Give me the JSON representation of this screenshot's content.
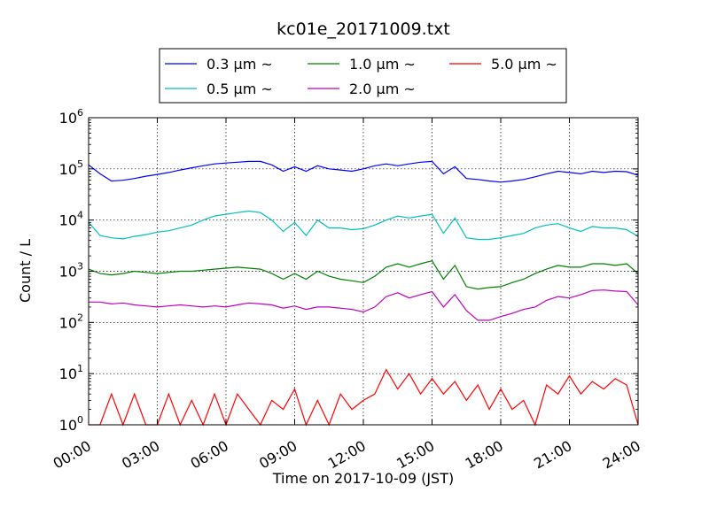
{
  "chart_data": {
    "type": "line",
    "title": "kc01e_20171009.txt",
    "xlabel": "Time on 2017-10-09 (JST)",
    "ylabel": "Count / L",
    "xlim": [
      0,
      24
    ],
    "ylim": [
      1,
      1000000
    ],
    "yscale": "log",
    "grid": true,
    "legend_position": "top-center",
    "x_ticks": [
      {
        "value": 0,
        "label": "00:00"
      },
      {
        "value": 3,
        "label": "03:00"
      },
      {
        "value": 6,
        "label": "06:00"
      },
      {
        "value": 9,
        "label": "09:00"
      },
      {
        "value": 12,
        "label": "12:00"
      },
      {
        "value": 15,
        "label": "15:00"
      },
      {
        "value": 18,
        "label": "18:00"
      },
      {
        "value": 21,
        "label": "21:00"
      },
      {
        "value": 24,
        "label": "24:00"
      }
    ],
    "y_ticks": [
      {
        "value": 1,
        "base": "10",
        "exp": "0"
      },
      {
        "value": 10,
        "base": "10",
        "exp": "1"
      },
      {
        "value": 100,
        "base": "10",
        "exp": "2"
      },
      {
        "value": 1000,
        "base": "10",
        "exp": "3"
      },
      {
        "value": 10000,
        "base": "10",
        "exp": "4"
      },
      {
        "value": 100000,
        "base": "10",
        "exp": "5"
      },
      {
        "value": 1000000,
        "base": "10",
        "exp": "6"
      }
    ],
    "series": [
      {
        "name": "0.3 μm ~",
        "color": "#0000ff",
        "x": [
          0,
          0.5,
          1,
          1.5,
          2,
          2.5,
          3,
          3.5,
          4,
          4.5,
          5,
          5.5,
          6,
          6.5,
          7,
          7.5,
          8,
          8.5,
          9,
          9.5,
          10,
          10.5,
          11,
          11.5,
          12,
          12.5,
          13,
          13.5,
          14,
          14.5,
          15,
          15.5,
          16,
          16.5,
          17,
          17.5,
          18,
          18.5,
          19,
          19.5,
          20,
          20.5,
          21,
          21.5,
          22,
          22.5,
          23,
          23.5,
          24
        ],
        "y": [
          120000,
          80000,
          58000,
          60000,
          65000,
          72000,
          78000,
          85000,
          95000,
          105000,
          115000,
          125000,
          130000,
          135000,
          140000,
          140000,
          120000,
          90000,
          110000,
          90000,
          115000,
          100000,
          95000,
          90000,
          100000,
          115000,
          125000,
          115000,
          125000,
          135000,
          140000,
          80000,
          110000,
          65000,
          62000,
          58000,
          55000,
          58000,
          62000,
          70000,
          80000,
          90000,
          85000,
          80000,
          90000,
          85000,
          90000,
          88000,
          75000
        ]
      },
      {
        "name": "0.5 μm ~",
        "color": "#00bfbf",
        "x": [
          0,
          0.5,
          1,
          1.5,
          2,
          2.5,
          3,
          3.5,
          4,
          4.5,
          5,
          5.5,
          6,
          6.5,
          7,
          7.5,
          8,
          8.5,
          9,
          9.5,
          10,
          10.5,
          11,
          11.5,
          12,
          12.5,
          13,
          13.5,
          14,
          14.5,
          15,
          15.5,
          16,
          16.5,
          17,
          17.5,
          18,
          18.5,
          19,
          19.5,
          20,
          20.5,
          21,
          21.5,
          22,
          22.5,
          23,
          23.5,
          24
        ],
        "y": [
          9000,
          5000,
          4500,
          4300,
          4800,
          5200,
          5800,
          6200,
          7000,
          8000,
          10000,
          12000,
          13000,
          14000,
          15000,
          14000,
          10000,
          6000,
          9000,
          5000,
          10000,
          7000,
          7000,
          6500,
          6800,
          8000,
          10000,
          12000,
          11000,
          12000,
          13000,
          5500,
          11000,
          4500,
          4200,
          4200,
          4500,
          5000,
          5500,
          7000,
          8000,
          8500,
          7000,
          6000,
          7500,
          7000,
          7000,
          6500,
          4800
        ]
      },
      {
        "name": "1.0 μm ~",
        "color": "#008000",
        "x": [
          0,
          0.5,
          1,
          1.5,
          2,
          2.5,
          3,
          3.5,
          4,
          4.5,
          5,
          5.5,
          6,
          6.5,
          7,
          7.5,
          8,
          8.5,
          9,
          9.5,
          10,
          10.5,
          11,
          11.5,
          12,
          12.5,
          13,
          13.5,
          14,
          14.5,
          15,
          15.5,
          16,
          16.5,
          17,
          17.5,
          18,
          18.5,
          19,
          19.5,
          20,
          20.5,
          21,
          21.5,
          22,
          22.5,
          23,
          23.5,
          24
        ],
        "y": [
          1100,
          900,
          850,
          900,
          1000,
          950,
          900,
          950,
          1000,
          1000,
          1050,
          1100,
          1150,
          1200,
          1150,
          1100,
          900,
          700,
          900,
          700,
          1000,
          800,
          700,
          650,
          600,
          800,
          1200,
          1400,
          1200,
          1400,
          1600,
          700,
          1300,
          500,
          450,
          480,
          500,
          600,
          700,
          900,
          1100,
          1300,
          1200,
          1200,
          1400,
          1400,
          1300,
          1400,
          900
        ]
      },
      {
        "name": "2.0 μm ~",
        "color": "#bf00bf",
        "x": [
          0,
          0.5,
          1,
          1.5,
          2,
          2.5,
          3,
          3.5,
          4,
          4.5,
          5,
          5.5,
          6,
          6.5,
          7,
          7.5,
          8,
          8.5,
          9,
          9.5,
          10,
          10.5,
          11,
          11.5,
          12,
          12.5,
          13,
          13.5,
          14,
          14.5,
          15,
          15.5,
          16,
          16.5,
          17,
          17.5,
          18,
          18.5,
          19,
          19.5,
          20,
          20.5,
          21,
          21.5,
          22,
          22.5,
          23,
          23.5,
          24
        ],
        "y": [
          250,
          250,
          230,
          240,
          220,
          210,
          200,
          210,
          220,
          210,
          200,
          210,
          200,
          220,
          240,
          230,
          220,
          190,
          210,
          180,
          200,
          200,
          190,
          180,
          160,
          200,
          320,
          380,
          300,
          350,
          400,
          200,
          350,
          170,
          110,
          110,
          130,
          150,
          180,
          200,
          270,
          320,
          300,
          350,
          420,
          430,
          410,
          400,
          220
        ]
      },
      {
        "name": "5.0 μm ~",
        "color": "#ff0000",
        "x": [
          0,
          0.5,
          1,
          1.5,
          2,
          2.5,
          3,
          3.5,
          4,
          4.5,
          5,
          5.5,
          6,
          6.5,
          7,
          7.5,
          8,
          8.5,
          9,
          9.5,
          10,
          10.5,
          11,
          11.5,
          12,
          12.5,
          13,
          13.5,
          14,
          14.5,
          15,
          15.5,
          16,
          16.5,
          17,
          17.5,
          18,
          18.5,
          19,
          19.5,
          20,
          20.5,
          21,
          21.5,
          22,
          22.5,
          23,
          23.5,
          24
        ],
        "y": [
          1,
          1,
          4,
          1,
          4,
          1,
          1,
          4,
          1,
          3,
          1,
          4,
          1,
          4,
          2,
          1,
          3,
          2,
          5,
          1,
          3,
          1,
          4,
          2,
          3,
          4,
          12,
          5,
          10,
          4,
          8,
          4,
          7,
          3,
          6,
          2,
          5,
          2,
          3,
          1,
          6,
          4,
          9,
          4,
          7,
          5,
          8,
          6,
          1
        ]
      }
    ]
  }
}
